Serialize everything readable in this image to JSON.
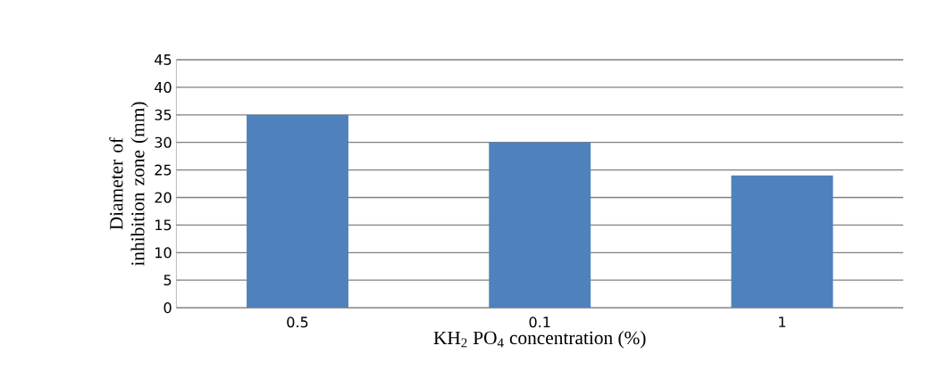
{
  "chart_data": {
    "type": "bar",
    "xlabel": "KH$_{2}$ PO$_{4}$  concentration (%)",
    "ylabel": "Diameter of inhibition zone (mm)",
    "categories": [
      "0.5",
      "0.1",
      "1"
    ],
    "values": [
      35,
      30,
      24
    ],
    "color": "#4f81bd",
    "ylim": [
      0,
      45
    ],
    "yticks": [
      0,
      5,
      10,
      15,
      20,
      25,
      30,
      35,
      40,
      45
    ],
    "grid": "y",
    "legend": false
  }
}
